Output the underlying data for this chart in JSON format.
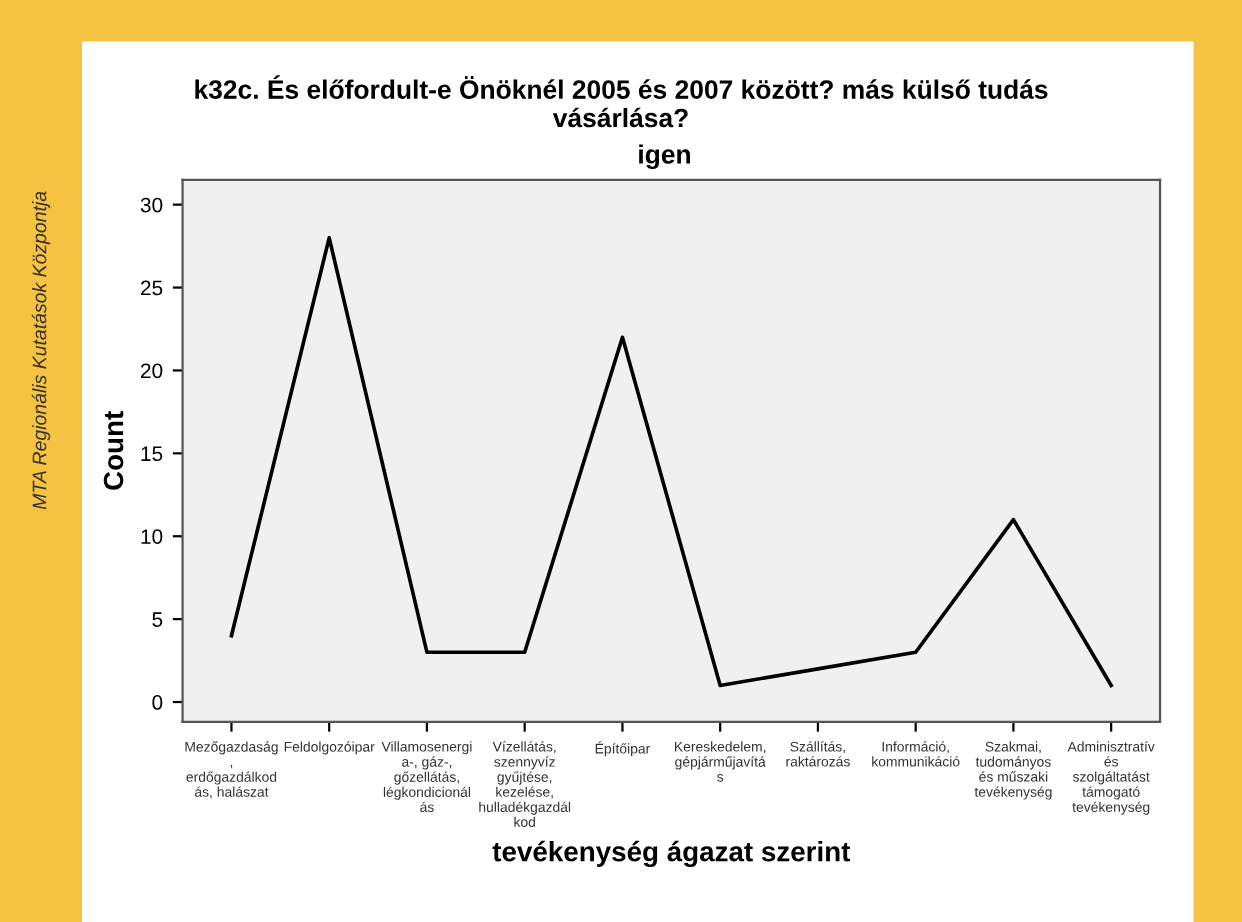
{
  "chart_data": {
    "type": "line",
    "title": "k32c. És előfordult-e Önöknél 2005 és 2007 között? más külső tudás\nvásárlása?",
    "subtitle": "igen",
    "xlabel": "tevékenység ágazat szerint",
    "ylabel": "Count",
    "annotations": [
      "MTA Regionális Kutatások Központja"
    ],
    "categories": [
      "Mezőgazdaság\n,\nerdőgazdálkod\nás, halászat",
      "Feldolgozóipar",
      "Villamosenergi\na-, gáz-,\ngőzellátás,\nlégkondicionál\nás",
      "Vízellátás,\nszennyvíz\ngyűjtése,\nkezelése,\nhulladékgazdál\nkod",
      "Építőipar",
      "Kereskedelem,\ngépjárműjavítá\ns",
      "Szállítás,\nraktározás",
      "Információ,\nkommunikáció",
      "Szakmai,\ntudományos\nés műszaki\ntevékenység",
      "Adminisztratív\nés\nszolgáltatást\ntámogató\ntevékenység"
    ],
    "series": [
      {
        "color": "#000000",
        "values": [
          4,
          28,
          3,
          3,
          22,
          1,
          2,
          3,
          11,
          1
        ]
      }
    ],
    "ylim": [
      -1.2,
      31.5
    ],
    "yticks": [
      0,
      5,
      10,
      15,
      20,
      25,
      30
    ],
    "grid": false,
    "legend": false,
    "marker": "none",
    "line_style": "solid"
  }
}
